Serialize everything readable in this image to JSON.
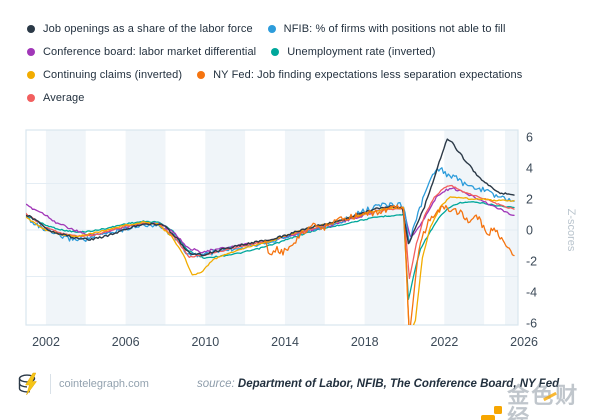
{
  "legend": {
    "items": [
      {
        "label": "Job openings as a share of the labor force",
        "color": "#2b3947"
      },
      {
        "label": "NFIB: % of firms with positions not able to fill",
        "color": "#2d9cdb"
      },
      {
        "label": "Conference board: labor market differential",
        "color": "#a137b8"
      },
      {
        "label": "Unemployment rate (inverted)",
        "color": "#00a79b"
      },
      {
        "label": "Continuing claims (inverted)",
        "color": "#f2ac00"
      },
      {
        "label": "NY Fed: Job finding expectations less separation expectations",
        "color": "#f57410"
      },
      {
        "label": "Average",
        "color": "#f25f5f"
      }
    ],
    "row_chunks": [
      2,
      2,
      2,
      1
    ]
  },
  "chart_data": {
    "type": "line",
    "title": "",
    "xlabel": "",
    "ylabel": "Z-scores",
    "xlim": [
      2001.0,
      2025.7
    ],
    "ylim": [
      -6.3,
      6.3
    ],
    "x_ticks": [
      2002,
      2006,
      2010,
      2014,
      2018,
      2022,
      2026
    ],
    "y_ticks": [
      6,
      4,
      2,
      0,
      -2,
      -4,
      -6
    ],
    "gridlines_y": [
      3,
      0,
      -3
    ],
    "bands_x": [
      [
        2002,
        2004
      ],
      [
        2006,
        2008
      ],
      [
        2010,
        2012
      ],
      [
        2014,
        2016
      ],
      [
        2018,
        2020
      ],
      [
        2022,
        2024
      ],
      [
        2025.05,
        2025.7
      ]
    ],
    "band_color": "#f0f5f9",
    "grid_color": "#e4edf4",
    "border_color": "#d9e5ee",
    "tick_color": "#3c4a58",
    "ylabel_color": "#b9c4cd",
    "legend_position": "top",
    "series": [
      {
        "name": "Unemployment rate (inverted)",
        "color": "#00a79b",
        "noise": 0.04,
        "width": 1.3,
        "points": [
          [
            2001.0,
            0.95
          ],
          [
            2002.0,
            0.3
          ],
          [
            2002.8,
            0.0
          ],
          [
            2003.6,
            -0.15
          ],
          [
            2004.4,
            -0.05
          ],
          [
            2005.2,
            0.15
          ],
          [
            2006.0,
            0.4
          ],
          [
            2006.9,
            0.55
          ],
          [
            2007.7,
            0.5
          ],
          [
            2008.4,
            -0.1
          ],
          [
            2009.1,
            -1.3
          ],
          [
            2009.9,
            -1.8
          ],
          [
            2010.7,
            -1.7
          ],
          [
            2011.7,
            -1.5
          ],
          [
            2012.7,
            -1.2
          ],
          [
            2013.7,
            -0.8
          ],
          [
            2014.7,
            -0.35
          ],
          [
            2015.7,
            0.05
          ],
          [
            2016.7,
            0.3
          ],
          [
            2017.7,
            0.6
          ],
          [
            2018.7,
            0.85
          ],
          [
            2019.95,
            1.0
          ],
          [
            2020.2,
            -4.5
          ],
          [
            2020.45,
            -3.0
          ],
          [
            2020.8,
            -1.2
          ],
          [
            2021.3,
            -0.1
          ],
          [
            2021.8,
            0.9
          ],
          [
            2022.3,
            1.5
          ],
          [
            2022.8,
            1.75
          ],
          [
            2023.3,
            1.8
          ],
          [
            2023.8,
            1.75
          ],
          [
            2024.3,
            1.65
          ],
          [
            2024.8,
            1.55
          ],
          [
            2025.5,
            1.45
          ]
        ]
      },
      {
        "name": "Conference board: labor market differential",
        "color": "#a137b8",
        "noise": 0.07,
        "width": 1.3,
        "points": [
          [
            2001.0,
            1.6
          ],
          [
            2001.9,
            1.05
          ],
          [
            2002.5,
            0.5
          ],
          [
            2003.2,
            0.1
          ],
          [
            2003.9,
            -0.25
          ],
          [
            2004.6,
            -0.3
          ],
          [
            2005.4,
            0.0
          ],
          [
            2006.2,
            0.25
          ],
          [
            2007.0,
            0.45
          ],
          [
            2007.7,
            0.4
          ],
          [
            2008.4,
            -0.1
          ],
          [
            2009.1,
            -1.15
          ],
          [
            2009.8,
            -1.4
          ],
          [
            2010.6,
            -1.25
          ],
          [
            2011.6,
            -1.0
          ],
          [
            2012.6,
            -0.85
          ],
          [
            2013.6,
            -0.6
          ],
          [
            2014.6,
            -0.25
          ],
          [
            2015.6,
            0.1
          ],
          [
            2016.6,
            0.4
          ],
          [
            2017.6,
            0.8
          ],
          [
            2018.6,
            1.2
          ],
          [
            2019.4,
            1.45
          ],
          [
            2019.95,
            1.4
          ],
          [
            2020.3,
            -0.45
          ],
          [
            2020.7,
            0.1
          ],
          [
            2021.1,
            1.0
          ],
          [
            2021.6,
            2.1
          ],
          [
            2022.1,
            2.6
          ],
          [
            2022.5,
            2.65
          ],
          [
            2023.0,
            2.4
          ],
          [
            2023.5,
            2.15
          ],
          [
            2024.0,
            1.85
          ],
          [
            2024.5,
            1.5
          ],
          [
            2025.5,
            0.95
          ]
        ]
      },
      {
        "name": "NFIB: % of firms with positions not able to fill",
        "color": "#2d9cdb",
        "noise": 0.16,
        "width": 1.3,
        "points": [
          [
            2001.0,
            0.85
          ],
          [
            2001.8,
            0.1
          ],
          [
            2002.4,
            -0.25
          ],
          [
            2003.1,
            -0.55
          ],
          [
            2004.0,
            -0.6
          ],
          [
            2004.8,
            -0.3
          ],
          [
            2005.6,
            -0.05
          ],
          [
            2006.4,
            0.25
          ],
          [
            2007.1,
            0.35
          ],
          [
            2007.8,
            0.2
          ],
          [
            2008.5,
            -0.5
          ],
          [
            2009.2,
            -1.65
          ],
          [
            2010.0,
            -1.55
          ],
          [
            2011.0,
            -1.3
          ],
          [
            2012.0,
            -1.05
          ],
          [
            2013.0,
            -0.8
          ],
          [
            2014.0,
            -0.45
          ],
          [
            2015.0,
            -0.05
          ],
          [
            2016.0,
            0.2
          ],
          [
            2017.0,
            0.65
          ],
          [
            2018.0,
            1.25
          ],
          [
            2018.8,
            1.6
          ],
          [
            2019.6,
            1.65
          ],
          [
            2019.95,
            1.6
          ],
          [
            2020.25,
            -0.7
          ],
          [
            2020.6,
            0.7
          ],
          [
            2021.0,
            2.3
          ],
          [
            2021.5,
            3.7
          ],
          [
            2021.8,
            3.95
          ],
          [
            2022.2,
            3.5
          ],
          [
            2022.6,
            3.35
          ],
          [
            2023.1,
            2.85
          ],
          [
            2023.6,
            2.7
          ],
          [
            2024.1,
            2.55
          ],
          [
            2024.6,
            2.2
          ],
          [
            2025.5,
            1.85
          ]
        ]
      },
      {
        "name": "Average",
        "color": "#f25f5f",
        "noise": 0.04,
        "width": 1.3,
        "points": [
          [
            2001.0,
            1.05
          ],
          [
            2002.0,
            0.15
          ],
          [
            2002.8,
            -0.2
          ],
          [
            2003.6,
            -0.4
          ],
          [
            2004.4,
            -0.35
          ],
          [
            2005.2,
            -0.05
          ],
          [
            2006.0,
            0.25
          ],
          [
            2006.9,
            0.45
          ],
          [
            2007.7,
            0.35
          ],
          [
            2008.4,
            -0.4
          ],
          [
            2009.2,
            -1.75
          ],
          [
            2010.0,
            -1.6
          ],
          [
            2011.0,
            -1.3
          ],
          [
            2012.0,
            -1.0
          ],
          [
            2013.0,
            -0.75
          ],
          [
            2014.0,
            -0.4
          ],
          [
            2015.0,
            -0.05
          ],
          [
            2016.0,
            0.3
          ],
          [
            2017.0,
            0.65
          ],
          [
            2018.0,
            1.05
          ],
          [
            2019.0,
            1.3
          ],
          [
            2019.95,
            1.4
          ],
          [
            2020.25,
            -3.1
          ],
          [
            2020.6,
            -0.9
          ],
          [
            2021.0,
            0.9
          ],
          [
            2021.5,
            2.1
          ],
          [
            2022.0,
            2.75
          ],
          [
            2022.3,
            2.9
          ],
          [
            2022.8,
            2.55
          ],
          [
            2023.3,
            2.3
          ],
          [
            2023.8,
            2.1
          ],
          [
            2024.3,
            1.9
          ],
          [
            2024.8,
            1.6
          ],
          [
            2025.5,
            1.35
          ]
        ]
      },
      {
        "name": "Continuing claims (inverted)",
        "color": "#f2ac00",
        "noise": 0.04,
        "width": 1.3,
        "points": [
          [
            2001.0,
            0.8
          ],
          [
            2002.0,
            0.0
          ],
          [
            2002.8,
            -0.3
          ],
          [
            2003.6,
            -0.4
          ],
          [
            2004.4,
            -0.2
          ],
          [
            2005.2,
            0.05
          ],
          [
            2006.0,
            0.3
          ],
          [
            2006.9,
            0.5
          ],
          [
            2007.6,
            0.4
          ],
          [
            2008.3,
            -0.4
          ],
          [
            2008.9,
            -1.6
          ],
          [
            2009.35,
            -2.9
          ],
          [
            2009.8,
            -2.75
          ],
          [
            2010.4,
            -1.9
          ],
          [
            2011.3,
            -1.45
          ],
          [
            2012.3,
            -1.05
          ],
          [
            2013.3,
            -0.7
          ],
          [
            2014.3,
            -0.25
          ],
          [
            2015.3,
            0.15
          ],
          [
            2016.3,
            0.45
          ],
          [
            2017.3,
            0.8
          ],
          [
            2018.3,
            1.15
          ],
          [
            2019.2,
            1.4
          ],
          [
            2019.95,
            1.45
          ],
          [
            2020.25,
            -6.9
          ],
          [
            2020.55,
            -5.8
          ],
          [
            2020.9,
            -1.8
          ],
          [
            2021.3,
            0.2
          ],
          [
            2021.8,
            1.5
          ],
          [
            2022.3,
            2.15
          ],
          [
            2022.8,
            2.1
          ],
          [
            2023.3,
            2.0
          ],
          [
            2023.9,
            2.0
          ],
          [
            2024.5,
            1.9
          ],
          [
            2025.5,
            1.9
          ]
        ]
      },
      {
        "name": "Job openings as a share of the labor force",
        "color": "#2b3947",
        "noise": 0.07,
        "width": 1.4,
        "points": [
          [
            2001.0,
            1.0
          ],
          [
            2001.7,
            0.45
          ],
          [
            2002.2,
            -0.05
          ],
          [
            2002.9,
            -0.3
          ],
          [
            2003.6,
            -0.55
          ],
          [
            2004.3,
            -0.6
          ],
          [
            2005.1,
            -0.35
          ],
          [
            2005.9,
            0.0
          ],
          [
            2006.6,
            0.3
          ],
          [
            2007.3,
            0.4
          ],
          [
            2007.9,
            0.3
          ],
          [
            2008.5,
            -0.4
          ],
          [
            2009.2,
            -1.5
          ],
          [
            2009.9,
            -1.6
          ],
          [
            2010.6,
            -1.35
          ],
          [
            2011.5,
            -1.05
          ],
          [
            2012.5,
            -0.8
          ],
          [
            2013.5,
            -0.55
          ],
          [
            2014.5,
            -0.15
          ],
          [
            2015.5,
            0.25
          ],
          [
            2016.5,
            0.5
          ],
          [
            2017.5,
            0.9
          ],
          [
            2018.5,
            1.35
          ],
          [
            2019.3,
            1.5
          ],
          [
            2019.9,
            1.4
          ],
          [
            2020.2,
            -0.9
          ],
          [
            2020.6,
            0.3
          ],
          [
            2021.0,
            1.5
          ],
          [
            2021.5,
            3.4
          ],
          [
            2021.9,
            5.0
          ],
          [
            2022.15,
            5.9
          ],
          [
            2022.4,
            5.6
          ],
          [
            2022.8,
            4.9
          ],
          [
            2023.3,
            4.1
          ],
          [
            2023.8,
            3.3
          ],
          [
            2024.3,
            2.8
          ],
          [
            2024.8,
            2.4
          ],
          [
            2025.5,
            2.25
          ]
        ]
      },
      {
        "name": "NY Fed: Job finding expectations less separation expectations",
        "color": "#f57410",
        "noise": 0.2,
        "width": 1.3,
        "points": [
          [
            2013.0,
            -0.85
          ],
          [
            2013.25,
            -1.55
          ],
          [
            2013.6,
            -1.25
          ],
          [
            2013.9,
            -1.45
          ],
          [
            2014.3,
            -0.95
          ],
          [
            2014.7,
            -0.45
          ],
          [
            2015.1,
            0.0
          ],
          [
            2015.5,
            0.3
          ],
          [
            2015.9,
            0.1
          ],
          [
            2016.4,
            0.45
          ],
          [
            2016.9,
            0.7
          ],
          [
            2017.4,
            0.85
          ],
          [
            2017.9,
            1.0
          ],
          [
            2018.4,
            1.1
          ],
          [
            2018.9,
            1.25
          ],
          [
            2019.4,
            1.35
          ],
          [
            2019.95,
            1.5
          ],
          [
            2020.25,
            -6.6
          ],
          [
            2020.5,
            -3.6
          ],
          [
            2020.8,
            -0.8
          ],
          [
            2021.2,
            0.5
          ],
          [
            2021.6,
            1.15
          ],
          [
            2022.0,
            1.45
          ],
          [
            2022.4,
            1.35
          ],
          [
            2022.9,
            1.05
          ],
          [
            2023.2,
            0.55
          ],
          [
            2023.6,
            0.95
          ],
          [
            2023.9,
            0.35
          ],
          [
            2024.2,
            -0.35
          ],
          [
            2024.5,
            0.25
          ],
          [
            2024.8,
            -0.5
          ],
          [
            2025.1,
            -0.9
          ],
          [
            2025.5,
            -1.65
          ]
        ]
      }
    ]
  },
  "footer": {
    "brand": "cointelegraph.com",
    "source_label": "source:",
    "source_text": "Department of Labor, NFIB, The Conference Board, NY Fed"
  },
  "watermark": {
    "text": "金色财经",
    "accent_color": "#f7a600"
  }
}
